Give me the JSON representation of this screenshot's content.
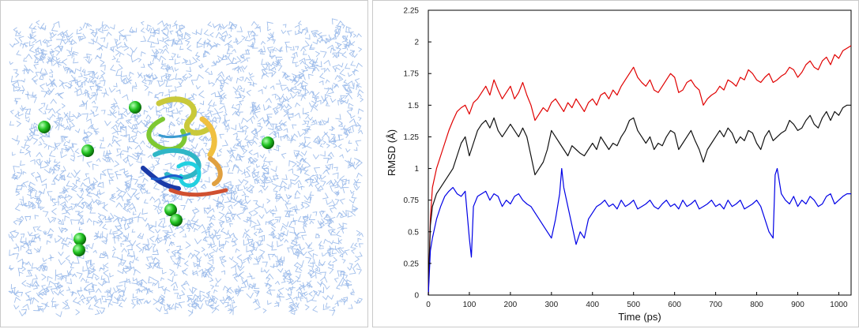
{
  "left_panel": {
    "image": "protein-in-water-box",
    "water_color": "#8fb3e8",
    "ion_color": "#22c322"
  },
  "chart_data": {
    "type": "line",
    "xlabel": "Time (ps)",
    "ylabel": "RMSD (Å)",
    "xlim": [
      0,
      1030
    ],
    "ylim": [
      0,
      2.25
    ],
    "x_ticks": [
      0,
      100,
      200,
      300,
      400,
      500,
      600,
      700,
      800,
      900,
      1000
    ],
    "y_ticks": [
      0,
      0.25,
      0.5,
      0.75,
      1,
      1.25,
      1.5,
      1.75,
      2,
      2.25
    ],
    "x_tick_labels": [
      "0",
      "100",
      "200",
      "300",
      "400",
      "500",
      "600",
      "700",
      "800",
      "900",
      "1000"
    ],
    "y_tick_labels": [
      "0",
      "0.25",
      "0.5",
      "0.75",
      "1",
      "1.25",
      "1.5",
      "1.75",
      "2",
      "2.25"
    ],
    "grid": false,
    "legend": "none",
    "series": [
      {
        "color": "#e00000",
        "x": [
          0,
          5,
          10,
          20,
          30,
          40,
          50,
          60,
          70,
          80,
          90,
          100,
          110,
          120,
          130,
          140,
          150,
          160,
          170,
          180,
          190,
          200,
          210,
          220,
          230,
          240,
          250,
          260,
          270,
          280,
          290,
          300,
          310,
          320,
          330,
          340,
          350,
          360,
          370,
          380,
          390,
          400,
          410,
          420,
          430,
          440,
          450,
          460,
          470,
          480,
          490,
          500,
          510,
          520,
          530,
          540,
          550,
          560,
          570,
          580,
          590,
          600,
          610,
          620,
          630,
          640,
          650,
          660,
          670,
          680,
          690,
          700,
          710,
          720,
          730,
          740,
          750,
          760,
          770,
          780,
          790,
          800,
          810,
          820,
          830,
          840,
          850,
          860,
          870,
          880,
          890,
          900,
          910,
          920,
          930,
          940,
          950,
          960,
          970,
          980,
          990,
          1000,
          1010,
          1020,
          1030
        ],
        "y": [
          0,
          0.6,
          0.85,
          1.0,
          1.1,
          1.2,
          1.3,
          1.38,
          1.45,
          1.48,
          1.5,
          1.43,
          1.52,
          1.55,
          1.6,
          1.65,
          1.58,
          1.7,
          1.62,
          1.55,
          1.6,
          1.65,
          1.55,
          1.6,
          1.68,
          1.58,
          1.5,
          1.38,
          1.43,
          1.48,
          1.45,
          1.52,
          1.55,
          1.5,
          1.45,
          1.52,
          1.48,
          1.55,
          1.5,
          1.45,
          1.52,
          1.55,
          1.5,
          1.58,
          1.6,
          1.55,
          1.62,
          1.58,
          1.65,
          1.7,
          1.75,
          1.8,
          1.72,
          1.68,
          1.65,
          1.7,
          1.62,
          1.6,
          1.65,
          1.7,
          1.75,
          1.72,
          1.6,
          1.62,
          1.68,
          1.7,
          1.65,
          1.62,
          1.5,
          1.55,
          1.58,
          1.6,
          1.65,
          1.62,
          1.7,
          1.68,
          1.65,
          1.72,
          1.7,
          1.78,
          1.75,
          1.7,
          1.68,
          1.72,
          1.75,
          1.68,
          1.7,
          1.73,
          1.75,
          1.8,
          1.78,
          1.72,
          1.76,
          1.82,
          1.85,
          1.8,
          1.78,
          1.85,
          1.88,
          1.82,
          1.9,
          1.87,
          1.93,
          1.95,
          1.97
        ]
      },
      {
        "color": "#111111",
        "x": [
          0,
          5,
          10,
          20,
          30,
          40,
          50,
          60,
          70,
          80,
          90,
          100,
          110,
          120,
          130,
          140,
          150,
          160,
          170,
          180,
          190,
          200,
          210,
          220,
          230,
          240,
          250,
          260,
          270,
          280,
          290,
          300,
          310,
          320,
          330,
          340,
          350,
          360,
          370,
          380,
          390,
          400,
          410,
          420,
          430,
          440,
          450,
          460,
          470,
          480,
          490,
          500,
          510,
          520,
          530,
          540,
          550,
          560,
          570,
          580,
          590,
          600,
          610,
          620,
          630,
          640,
          650,
          660,
          670,
          680,
          690,
          700,
          710,
          720,
          730,
          740,
          750,
          760,
          770,
          780,
          790,
          800,
          810,
          820,
          830,
          840,
          850,
          860,
          870,
          880,
          890,
          900,
          910,
          920,
          930,
          940,
          950,
          960,
          970,
          980,
          990,
          1000,
          1010,
          1020,
          1030
        ],
        "y": [
          0,
          0.55,
          0.7,
          0.8,
          0.85,
          0.9,
          0.95,
          1.0,
          1.1,
          1.2,
          1.25,
          1.1,
          1.2,
          1.3,
          1.35,
          1.38,
          1.32,
          1.4,
          1.3,
          1.25,
          1.3,
          1.35,
          1.3,
          1.25,
          1.32,
          1.25,
          1.1,
          0.95,
          1.0,
          1.05,
          1.15,
          1.3,
          1.25,
          1.2,
          1.15,
          1.1,
          1.18,
          1.15,
          1.12,
          1.1,
          1.15,
          1.2,
          1.15,
          1.25,
          1.2,
          1.15,
          1.2,
          1.18,
          1.25,
          1.3,
          1.38,
          1.4,
          1.3,
          1.25,
          1.2,
          1.25,
          1.15,
          1.2,
          1.18,
          1.25,
          1.3,
          1.28,
          1.15,
          1.2,
          1.25,
          1.3,
          1.22,
          1.15,
          1.05,
          1.15,
          1.2,
          1.25,
          1.3,
          1.25,
          1.32,
          1.28,
          1.2,
          1.25,
          1.22,
          1.3,
          1.28,
          1.2,
          1.15,
          1.25,
          1.3,
          1.22,
          1.25,
          1.28,
          1.3,
          1.38,
          1.35,
          1.3,
          1.32,
          1.38,
          1.42,
          1.35,
          1.32,
          1.4,
          1.45,
          1.38,
          1.45,
          1.42,
          1.48,
          1.5,
          1.5
        ]
      },
      {
        "color": "#0000e6",
        "x": [
          0,
          5,
          10,
          20,
          30,
          40,
          50,
          60,
          70,
          80,
          90,
          100,
          105,
          110,
          120,
          130,
          140,
          150,
          160,
          170,
          180,
          190,
          200,
          210,
          220,
          230,
          240,
          250,
          260,
          270,
          280,
          290,
          300,
          310,
          320,
          325,
          330,
          340,
          350,
          360,
          370,
          380,
          390,
          400,
          410,
          420,
          430,
          440,
          450,
          460,
          470,
          480,
          490,
          500,
          510,
          520,
          530,
          540,
          550,
          560,
          570,
          580,
          590,
          600,
          610,
          620,
          630,
          640,
          650,
          660,
          670,
          680,
          690,
          700,
          710,
          720,
          730,
          740,
          750,
          760,
          770,
          780,
          790,
          800,
          810,
          820,
          830,
          840,
          845,
          850,
          860,
          870,
          880,
          890,
          900,
          910,
          920,
          930,
          940,
          950,
          960,
          970,
          980,
          990,
          1000,
          1010,
          1020,
          1030
        ],
        "y": [
          0,
          0.35,
          0.45,
          0.6,
          0.7,
          0.78,
          0.82,
          0.85,
          0.8,
          0.78,
          0.82,
          0.45,
          0.3,
          0.7,
          0.78,
          0.8,
          0.82,
          0.75,
          0.8,
          0.78,
          0.7,
          0.75,
          0.72,
          0.78,
          0.8,
          0.75,
          0.72,
          0.7,
          0.65,
          0.6,
          0.55,
          0.5,
          0.45,
          0.6,
          0.8,
          1.0,
          0.85,
          0.7,
          0.55,
          0.4,
          0.5,
          0.45,
          0.6,
          0.65,
          0.7,
          0.72,
          0.75,
          0.7,
          0.72,
          0.68,
          0.75,
          0.7,
          0.72,
          0.75,
          0.68,
          0.7,
          0.72,
          0.75,
          0.7,
          0.68,
          0.72,
          0.75,
          0.7,
          0.72,
          0.68,
          0.75,
          0.7,
          0.72,
          0.75,
          0.68,
          0.7,
          0.72,
          0.75,
          0.7,
          0.72,
          0.68,
          0.75,
          0.7,
          0.72,
          0.75,
          0.68,
          0.7,
          0.72,
          0.75,
          0.7,
          0.6,
          0.5,
          0.45,
          0.95,
          1.0,
          0.8,
          0.75,
          0.72,
          0.78,
          0.7,
          0.75,
          0.72,
          0.78,
          0.75,
          0.7,
          0.72,
          0.78,
          0.8,
          0.72,
          0.75,
          0.78,
          0.8,
          0.8
        ]
      }
    ]
  }
}
